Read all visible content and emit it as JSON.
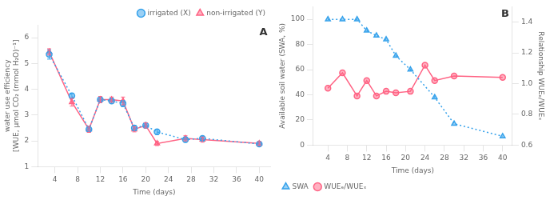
{
  "chart_data": [
    {
      "type": "line",
      "x_label": "Time (days)",
      "y_label": "water use efficiency\n[WUE, μmol CO₂ (mmol H₂O)⁻¹]",
      "xlim": [
        1,
        42
      ],
      "xticks": [
        4,
        8,
        12,
        16,
        20,
        24,
        28,
        32,
        36,
        40
      ],
      "ylim": [
        1.0,
        6.5
      ],
      "yticks": [
        1,
        2,
        3,
        4,
        5,
        6
      ],
      "grid": false,
      "legend": "upper right",
      "annotations": [
        {
          "text": "A"
        }
      ],
      "series": [
        {
          "name": "irrigated (X)",
          "marker": "circle",
          "line_style": "dotted",
          "x": [
            3,
            7,
            10,
            12,
            14,
            16,
            18,
            20,
            22,
            27,
            30,
            40
          ],
          "values": [
            5.35,
            3.75,
            2.45,
            3.6,
            3.55,
            3.45,
            2.5,
            2.6,
            2.35,
            2.05,
            2.1,
            1.88
          ],
          "errors": [
            0.18,
            0.1,
            0.1,
            0.1,
            0.1,
            0.12,
            0.1,
            0.1,
            0.1,
            0.1,
            0.08,
            0.08
          ]
        },
        {
          "name": "non-irrigated (Y)",
          "marker": "triangle",
          "line_style": "solid",
          "x": [
            3,
            7,
            10,
            12,
            14,
            16,
            18,
            20,
            22,
            27,
            30,
            40
          ],
          "values": [
            5.45,
            3.5,
            2.45,
            3.6,
            3.6,
            3.55,
            2.45,
            2.6,
            1.9,
            2.1,
            2.05,
            1.9
          ],
          "errors": [
            0.12,
            0.15,
            0.12,
            0.12,
            0.1,
            0.15,
            0.1,
            0.1,
            0.08,
            0.1,
            0.1,
            0.08
          ]
        }
      ]
    },
    {
      "type": "line",
      "x_label": "Time (days)",
      "y_label": "Available soil water (SWA, %)",
      "y2_label": "Relationship WUEₑ/WUEₓ",
      "xlim": [
        1,
        42
      ],
      "xticks": [
        4,
        8,
        12,
        16,
        20,
        24,
        28,
        32,
        36,
        40
      ],
      "ylim": [
        0,
        110
      ],
      "yticks": [
        0,
        20,
        40,
        60,
        80,
        100
      ],
      "y2lim": [
        0.6,
        1.5
      ],
      "y2ticks": [
        0.6,
        0.8,
        {
          "value": 1.0,
          "label": "1.0"
        },
        1.2,
        1.4
      ],
      "grid": false,
      "legend": "lower left",
      "annotations": [
        {
          "text": "B"
        }
      ],
      "series": [
        {
          "name": "SWA",
          "marker": "triangle",
          "line_style": "dotted",
          "x": [
            4,
            7,
            10,
            12,
            14,
            16,
            18,
            21,
            26,
            30,
            40
          ],
          "values": [
            100,
            100,
            100,
            91,
            87,
            84,
            71,
            60,
            38,
            17,
            7
          ]
        },
        {
          "name": "WUEₑ/WUEₓ",
          "marker": "circle",
          "line_style": "solid",
          "axis": "y2",
          "x": [
            4,
            7,
            10,
            12,
            14,
            16,
            18,
            21,
            24,
            26,
            30,
            40
          ],
          "values": [
            0.97,
            1.07,
            0.92,
            1.02,
            0.92,
            0.95,
            0.94,
            0.95,
            1.12,
            1.02,
            1.05,
            1.04
          ]
        }
      ]
    }
  ]
}
